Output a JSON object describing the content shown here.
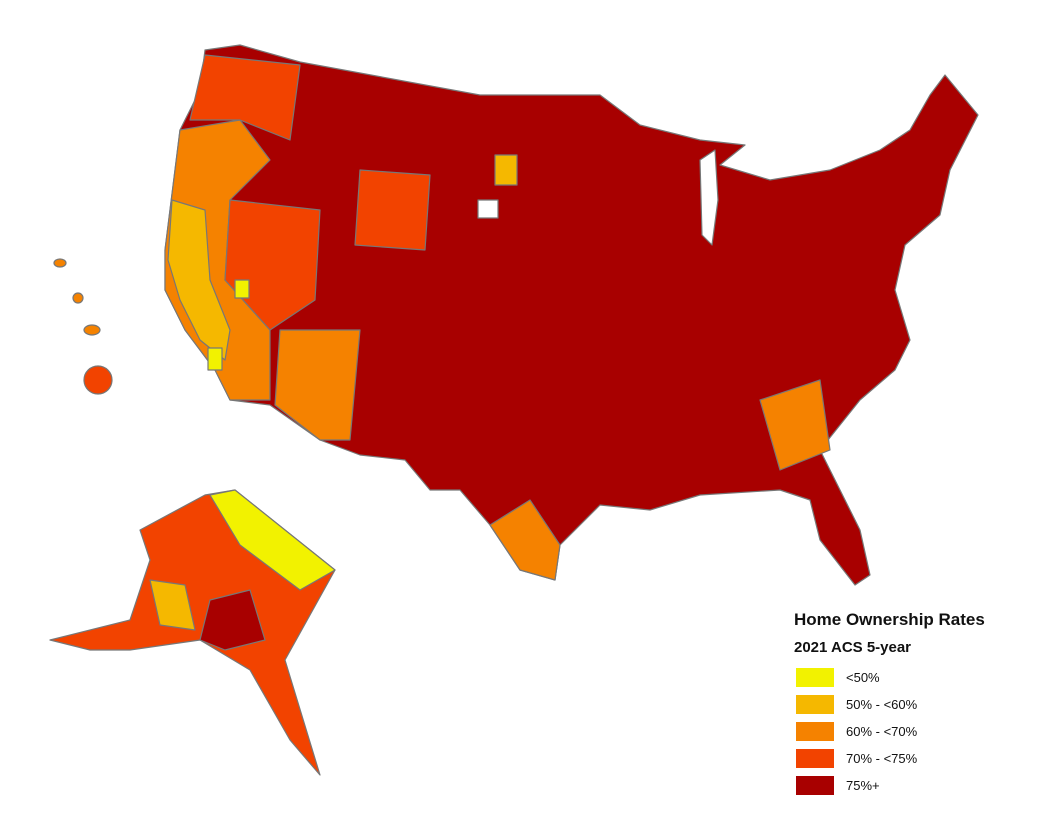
{
  "legend": {
    "title": "Home Ownership Rates",
    "subtitle": "2021 ACS 5-year",
    "items": [
      {
        "label": "<50%",
        "color": "#f2f200"
      },
      {
        "label": "50% - <60%",
        "color": "#f5b800"
      },
      {
        "label": "60% - <70%",
        "color": "#f58200"
      },
      {
        "label": "70% - <75%",
        "color": "#f24300"
      },
      {
        "label": "75%+",
        "color": "#a80000"
      }
    ]
  }
}
